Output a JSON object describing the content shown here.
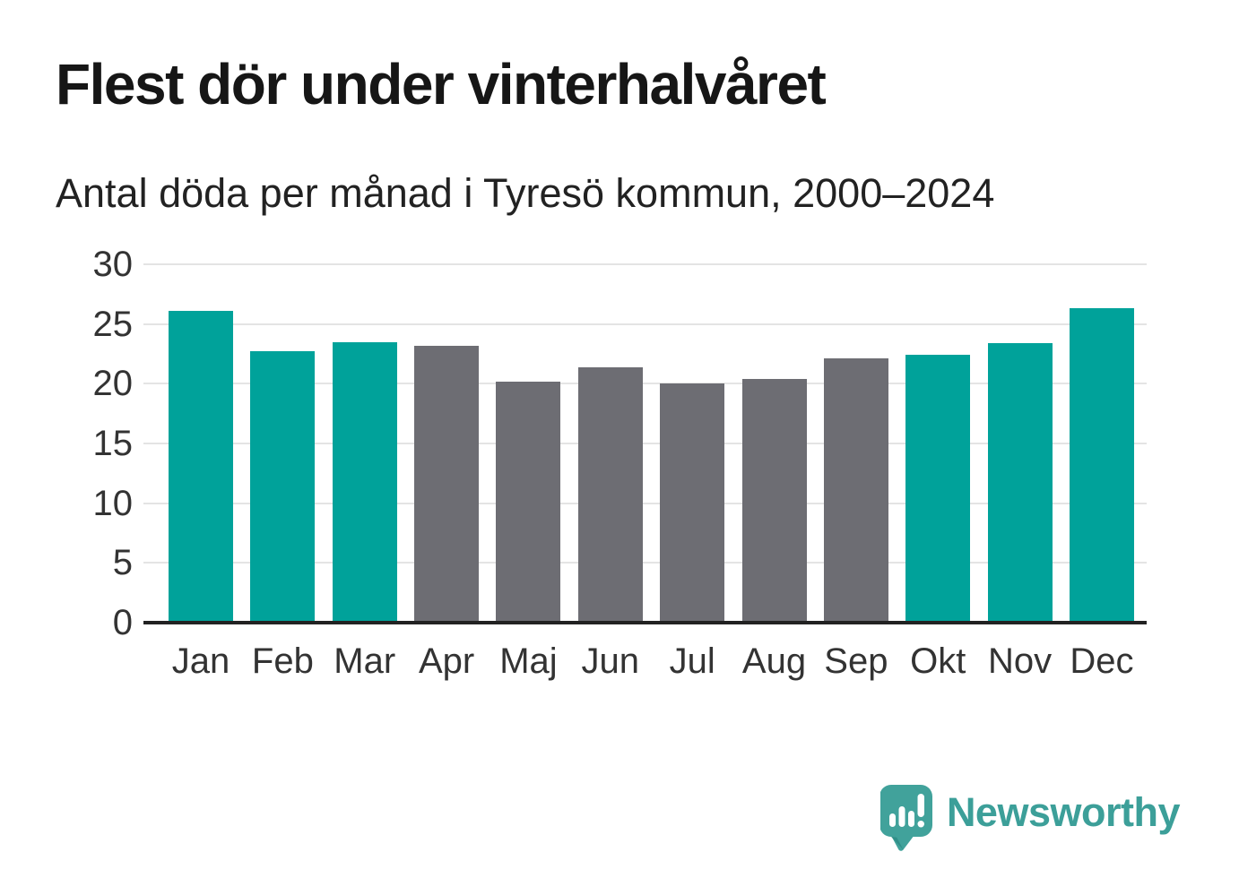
{
  "header": {
    "title": "Flest dör under vinterhalvåret",
    "subtitle": "Antal döda per månad i Tyresö kommun, 2000–2024"
  },
  "chart_data": {
    "type": "bar",
    "title": "Flest dör under vinterhalvåret",
    "subtitle": "Antal döda per månad i Tyresö kommun, 2000–2024",
    "categories": [
      "Jan",
      "Feb",
      "Mar",
      "Apr",
      "Maj",
      "Jun",
      "Jul",
      "Aug",
      "Sep",
      "Okt",
      "Nov",
      "Dec"
    ],
    "values": [
      26.1,
      22.7,
      23.5,
      23.2,
      20.2,
      21.4,
      20.0,
      20.4,
      22.1,
      22.4,
      23.4,
      26.3
    ],
    "bar_colors": [
      "teal",
      "teal",
      "teal",
      "gray",
      "gray",
      "gray",
      "gray",
      "gray",
      "gray",
      "teal",
      "teal",
      "teal"
    ],
    "palette": {
      "teal": "#00a29a",
      "gray": "#6d6d73"
    },
    "xlabel": "",
    "ylabel": "",
    "ylim": [
      0,
      30
    ],
    "yticks": [
      0,
      5,
      10,
      15,
      20,
      25,
      30
    ],
    "grid": true,
    "legend": false,
    "axis_color": "#333333",
    "gridline_color": "#e4e4e4",
    "baseline_color": "#222222"
  },
  "footer": {
    "brand": "Newsworthy",
    "brand_color": "#3c9f99",
    "icon": "newsworthy-speech-bubble-barchart-icon"
  }
}
